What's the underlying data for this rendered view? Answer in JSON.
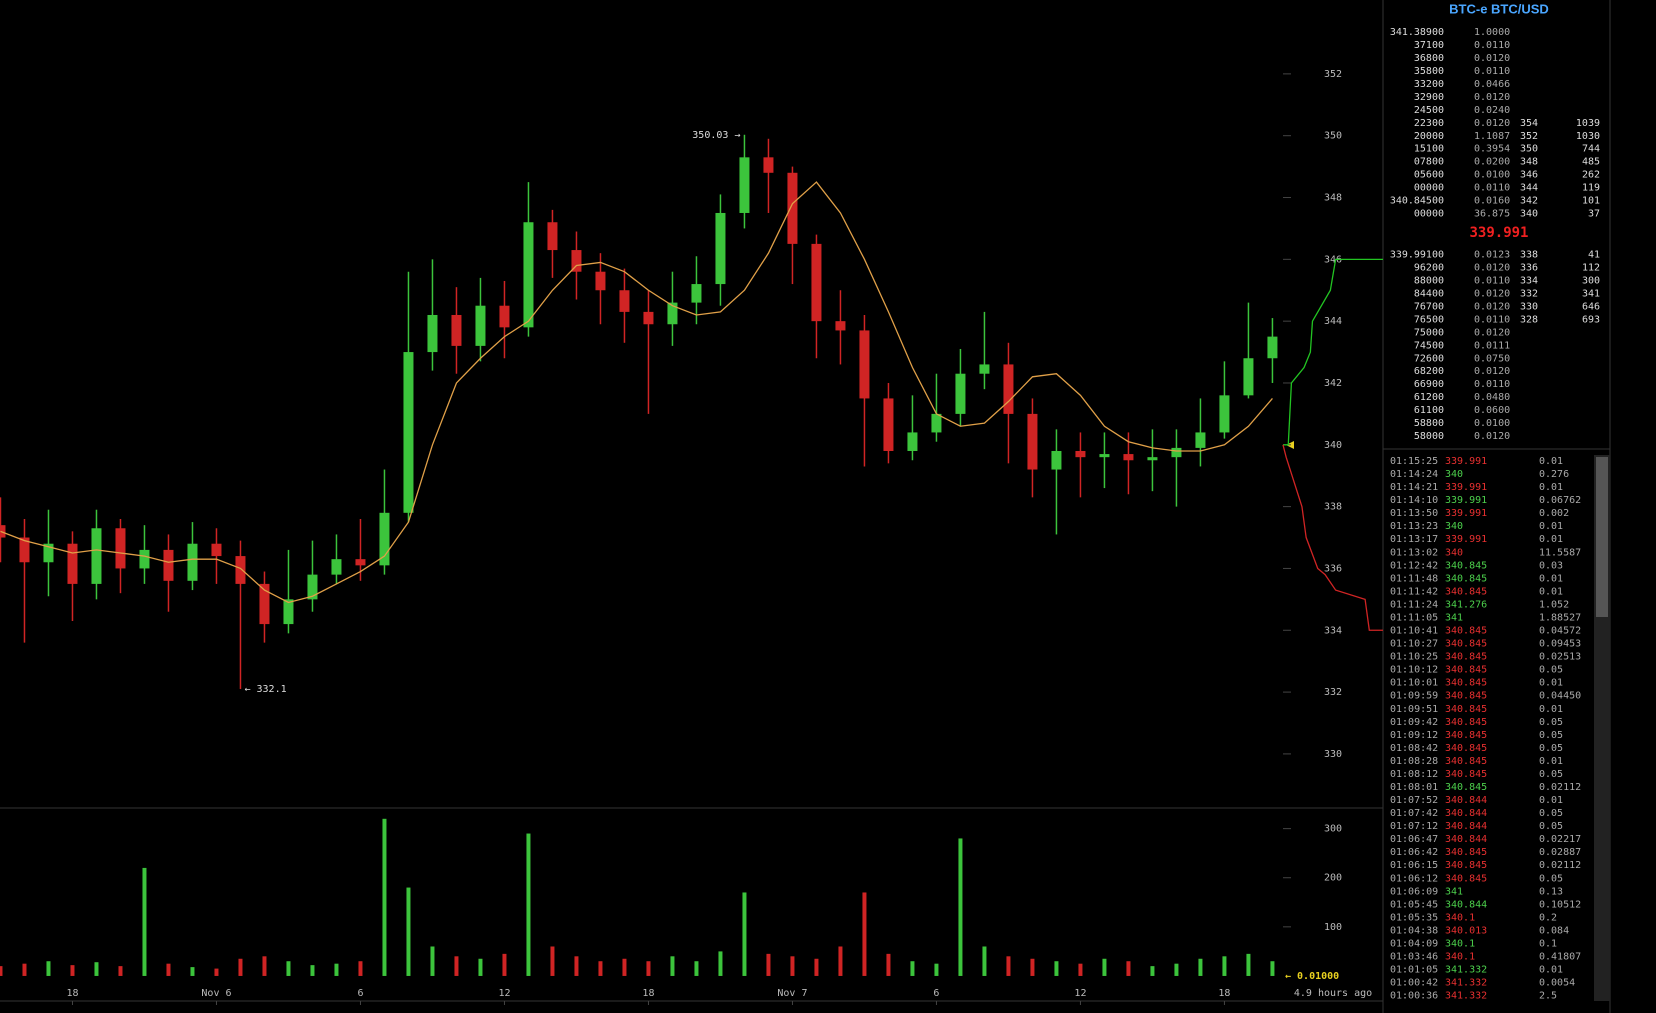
{
  "chart_data": [
    {
      "type": "candlestick",
      "x": [
        -9,
        -8,
        -7,
        -6,
        -5,
        -4,
        -3,
        -2,
        -1,
        0,
        1,
        2,
        3,
        4,
        5,
        6,
        7,
        8,
        9,
        10,
        11,
        12,
        13,
        14,
        15,
        16,
        17,
        18,
        19,
        20,
        21,
        22,
        23,
        24,
        25,
        26,
        27,
        28,
        29,
        30,
        31,
        32,
        33,
        34,
        35,
        36,
        37,
        38,
        39,
        40,
        41,
        42,
        43,
        44
      ],
      "open": [
        337.4,
        337.0,
        336.2,
        336.8,
        335.5,
        337.3,
        336.0,
        336.6,
        335.6,
        336.8,
        336.4,
        335.5,
        334.2,
        335.0,
        335.8,
        336.3,
        336.1,
        337.8,
        343.0,
        344.2,
        343.2,
        344.5,
        343.8,
        347.2,
        346.3,
        345.6,
        345.0,
        344.3,
        343.9,
        344.6,
        345.2,
        347.5,
        349.3,
        348.8,
        346.5,
        344.0,
        343.7,
        341.5,
        339.8,
        340.4,
        341.0,
        342.3,
        342.6,
        341.0,
        339.2,
        339.8,
        339.6,
        339.7,
        339.5,
        339.6,
        339.9,
        340.4,
        341.6,
        342.8
      ],
      "high": [
        338.3,
        337.6,
        337.9,
        337.2,
        337.9,
        337.6,
        337.4,
        337.1,
        337.5,
        337.3,
        336.9,
        335.9,
        336.6,
        336.9,
        337.1,
        337.6,
        339.2,
        345.6,
        346.0,
        345.1,
        345.4,
        345.3,
        348.5,
        347.6,
        346.9,
        346.2,
        345.7,
        345.0,
        345.6,
        346.1,
        348.1,
        350.03,
        349.9,
        349.0,
        346.8,
        345.0,
        344.2,
        342.0,
        341.6,
        342.3,
        343.1,
        344.3,
        343.3,
        341.5,
        340.5,
        340.4,
        340.4,
        340.4,
        340.5,
        340.5,
        341.5,
        342.7,
        344.6,
        344.1
      ],
      "low": [
        336.2,
        333.6,
        335.1,
        334.3,
        335.0,
        335.2,
        335.5,
        334.6,
        335.3,
        335.5,
        332.1,
        333.6,
        333.9,
        334.6,
        335.5,
        335.6,
        335.8,
        337.5,
        342.4,
        342.3,
        342.7,
        342.8,
        343.5,
        345.4,
        344.7,
        343.9,
        343.3,
        341.0,
        343.2,
        343.9,
        344.5,
        347.0,
        347.5,
        345.2,
        342.8,
        342.6,
        339.3,
        339.4,
        339.5,
        340.1,
        340.6,
        341.8,
        339.4,
        338.3,
        337.1,
        338.3,
        338.6,
        338.4,
        338.5,
        338.0,
        339.3,
        340.2,
        341.5,
        342.0
      ],
      "close": [
        337.0,
        336.2,
        336.8,
        335.5,
        337.3,
        336.0,
        336.6,
        335.6,
        336.8,
        336.4,
        335.5,
        334.2,
        335.0,
        335.8,
        336.3,
        336.1,
        337.8,
        343.0,
        344.2,
        343.2,
        344.5,
        343.8,
        347.2,
        346.3,
        345.6,
        345.0,
        344.3,
        343.9,
        344.6,
        345.2,
        347.5,
        349.3,
        348.8,
        346.5,
        344.0,
        343.7,
        341.5,
        339.8,
        340.4,
        341.0,
        342.3,
        342.6,
        341.0,
        339.2,
        339.8,
        339.6,
        339.7,
        339.5,
        339.6,
        339.9,
        340.4,
        341.6,
        342.8,
        343.5
      ],
      "up_color": "#3cc43c",
      "down_color": "#d02424",
      "series": [
        {
          "color": "#e0a048",
          "values": [
            337.2,
            336.9,
            336.7,
            336.5,
            336.6,
            336.5,
            336.4,
            336.2,
            336.3,
            336.3,
            336.0,
            335.3,
            334.9,
            335.1,
            335.5,
            335.9,
            336.4,
            337.5,
            340.0,
            342.0,
            342.8,
            343.5,
            344.0,
            345.0,
            345.8,
            345.9,
            345.6,
            345.0,
            344.5,
            344.2,
            344.3,
            345.0,
            346.2,
            347.8,
            348.5,
            347.5,
            346.0,
            344.3,
            342.5,
            341.0,
            340.6,
            340.7,
            341.4,
            342.2,
            342.3,
            341.6,
            340.6,
            340.1,
            339.9,
            339.8,
            339.8,
            340.0,
            340.6,
            341.5
          ]
        }
      ],
      "xlim": [
        -9.02,
        44.44
      ],
      "xticks": [
        {
          "value": -6,
          "label": "18"
        },
        {
          "value": 0,
          "label": "Nov 6"
        },
        6,
        12,
        18,
        {
          "value": 24,
          "label": "Nov 7"
        },
        {
          "value": 30,
          "label": "6"
        },
        {
          "value": 36,
          "label": "12"
        },
        {
          "value": 42,
          "label": "18"
        }
      ],
      "ylim": [
        328.25,
        354.39
      ],
      "yticks": [
        330,
        332,
        334,
        336,
        338,
        340,
        342,
        344,
        346,
        348,
        350,
        352
      ],
      "max_label": "350.03 →",
      "min_label": "← 332.1",
      "footnote": "4.9 hours ago"
    },
    {
      "type": "volume",
      "values": [
        20,
        25,
        30,
        22,
        28,
        20,
        220,
        25,
        18,
        15,
        35,
        40,
        30,
        22,
        25,
        30,
        320,
        180,
        60,
        40,
        35,
        45,
        290,
        60,
        40,
        30,
        35,
        30,
        40,
        30,
        50,
        170,
        45,
        40,
        35,
        60,
        170,
        45,
        30,
        25,
        280,
        60,
        40,
        35,
        30,
        25,
        35,
        30,
        20,
        25,
        35,
        40,
        45,
        30
      ],
      "ylim": [
        -51,
        342
      ],
      "yticks": [
        100,
        200,
        300
      ],
      "annotation": "← 0.01000"
    },
    {
      "type": "depth",
      "xlim": [
        0,
        95
      ],
      "series": [
        {
          "color": "#22c422",
          "x": [
            0,
            5,
            8,
            20,
            26,
            28,
            45,
            50,
            95
          ],
          "values": [
            340,
            340,
            342,
            342.5,
            343,
            344,
            345,
            346,
            346
          ]
        },
        {
          "color": "#d02424",
          "x": [
            0,
            3,
            18,
            22,
            33,
            40,
            50,
            78,
            82,
            95
          ],
          "values": [
            340,
            339.6,
            338,
            337,
            336,
            335.8,
            335.3,
            335,
            334,
            334
          ]
        }
      ]
    }
  ],
  "order_book": {
    "title": "BTC-e BTC/USD",
    "asks": [
      [
        "341.38900",
        "1.0000"
      ],
      [
        "37100",
        "0.0110"
      ],
      [
        "36800",
        "0.0120"
      ],
      [
        "35800",
        "0.0110"
      ],
      [
        "33200",
        "0.0466"
      ],
      [
        "32900",
        "0.0120"
      ],
      [
        "24500",
        "0.0240"
      ],
      [
        "22300",
        "0.0120",
        "354",
        "1039"
      ],
      [
        "20000",
        "1.1087",
        "352",
        "1030"
      ],
      [
        "15100",
        "0.3954",
        "350",
        "744"
      ],
      [
        "07800",
        "0.0200",
        "348",
        "485"
      ],
      [
        "05600",
        "0.0100",
        "346",
        "262"
      ],
      [
        "00000",
        "0.0110",
        "344",
        "119"
      ],
      [
        "340.84500",
        "0.0160",
        "342",
        "101"
      ],
      [
        "00000",
        "36.875",
        "340",
        "37"
      ]
    ],
    "last_price": "339.991",
    "bids": [
      [
        "339.99100",
        "0.0123",
        "338",
        "41"
      ],
      [
        "96200",
        "0.0120",
        "336",
        "112"
      ],
      [
        "88000",
        "0.0110",
        "334",
        "300"
      ],
      [
        "84400",
        "0.0120",
        "332",
        "341"
      ],
      [
        "76700",
        "0.0120",
        "330",
        "646"
      ],
      [
        "76500",
        "0.0110",
        "328",
        "693"
      ],
      [
        "75000",
        "0.0120"
      ],
      [
        "74500",
        "0.0111"
      ],
      [
        "72600",
        "0.0750"
      ],
      [
        "68200",
        "0.0120"
      ],
      [
        "66900",
        "0.0110"
      ],
      [
        "61200",
        "0.0480"
      ],
      [
        "61100",
        "0.0600"
      ],
      [
        "58800",
        "0.0100"
      ],
      [
        "58000",
        "0.0120"
      ]
    ]
  },
  "trades": [
    {
      "time": "01:15:25",
      "price": "339.991",
      "amount": "0.01",
      "color": "#e83030"
    },
    {
      "time": "01:14:24",
      "price": "340",
      "amount": "0.276",
      "color": "#4cd04c"
    },
    {
      "time": "01:14:21",
      "price": "339.991",
      "amount": "0.01",
      "color": "#e83030"
    },
    {
      "time": "01:14:10",
      "price": "339.991",
      "amount": "0.06762",
      "color": "#4cd04c"
    },
    {
      "time": "01:13:50",
      "price": "339.991",
      "amount": "0.002",
      "color": "#e83030"
    },
    {
      "time": "01:13:23",
      "price": "340",
      "amount": "0.01",
      "color": "#4cd04c"
    },
    {
      "time": "01:13:17",
      "price": "339.991",
      "amount": "0.01",
      "color": "#e83030"
    },
    {
      "time": "01:13:02",
      "price": "340",
      "amount": "11.5587",
      "color": "#e83030"
    },
    {
      "time": "01:12:42",
      "price": "340.845",
      "amount": "0.03",
      "color": "#4cd04c"
    },
    {
      "time": "01:11:48",
      "price": "340.845",
      "amount": "0.01",
      "color": "#4cd04c"
    },
    {
      "time": "01:11:42",
      "price": "340.845",
      "amount": "0.01",
      "color": "#e83030"
    },
    {
      "time": "01:11:24",
      "price": "341.276",
      "amount": "1.052",
      "color": "#4cd04c"
    },
    {
      "time": "01:11:05",
      "price": "341",
      "amount": "1.88527",
      "color": "#4cd04c"
    },
    {
      "time": "01:10:41",
      "price": "340.845",
      "amount": "0.04572",
      "color": "#e83030"
    },
    {
      "time": "01:10:27",
      "price": "340.845",
      "amount": "0.09453",
      "color": "#e83030"
    },
    {
      "time": "01:10:25",
      "price": "340.845",
      "amount": "0.02513",
      "color": "#e83030"
    },
    {
      "time": "01:10:12",
      "price": "340.845",
      "amount": "0.05",
      "color": "#e83030"
    },
    {
      "time": "01:10:01",
      "price": "340.845",
      "amount": "0.01",
      "color": "#e83030"
    },
    {
      "time": "01:09:59",
      "price": "340.845",
      "amount": "0.04450",
      "color": "#e83030"
    },
    {
      "time": "01:09:51",
      "price": "340.845",
      "amount": "0.01",
      "color": "#e83030"
    },
    {
      "time": "01:09:42",
      "price": "340.845",
      "amount": "0.05",
      "color": "#e83030"
    },
    {
      "time": "01:09:12",
      "price": "340.845",
      "amount": "0.05",
      "color": "#e83030"
    },
    {
      "time": "01:08:42",
      "price": "340.845",
      "amount": "0.05",
      "color": "#e83030"
    },
    {
      "time": "01:08:28",
      "price": "340.845",
      "amount": "0.01",
      "color": "#e83030"
    },
    {
      "time": "01:08:12",
      "price": "340.845",
      "amount": "0.05",
      "color": "#e83030"
    },
    {
      "time": "01:08:01",
      "price": "340.845",
      "amount": "0.02112",
      "color": "#4cd04c"
    },
    {
      "time": "01:07:52",
      "price": "340.844",
      "amount": "0.01",
      "color": "#e83030"
    },
    {
      "time": "01:07:42",
      "price": "340.844",
      "amount": "0.05",
      "color": "#e83030"
    },
    {
      "time": "01:07:12",
      "price": "340.844",
      "amount": "0.05",
      "color": "#e83030"
    },
    {
      "time": "01:06:47",
      "price": "340.844",
      "amount": "0.02217",
      "color": "#e83030"
    },
    {
      "time": "01:06:42",
      "price": "340.845",
      "amount": "0.02887",
      "color": "#e83030"
    },
    {
      "time": "01:06:15",
      "price": "340.845",
      "amount": "0.02112",
      "color": "#e83030"
    },
    {
      "time": "01:06:12",
      "price": "340.845",
      "amount": "0.05",
      "color": "#e83030"
    },
    {
      "time": "01:06:09",
      "price": "341",
      "amount": "0.13",
      "color": "#4cd04c"
    },
    {
      "time": "01:05:45",
      "price": "340.844",
      "amount": "0.10512",
      "color": "#4cd04c"
    },
    {
      "time": "01:05:35",
      "price": "340.1",
      "amount": "0.2",
      "color": "#e83030"
    },
    {
      "time": "01:04:38",
      "price": "340.013",
      "amount": "0.084",
      "color": "#e83030"
    },
    {
      "time": "01:04:09",
      "price": "340.1",
      "amount": "0.1",
      "color": "#4cd04c"
    },
    {
      "time": "01:03:46",
      "price": "340.1",
      "amount": "0.41807",
      "color": "#e83030"
    },
    {
      "time": "01:01:05",
      "price": "341.332",
      "amount": "0.01",
      "color": "#4cd04c"
    },
    {
      "time": "01:00:42",
      "price": "341.332",
      "amount": "0.0054",
      "color": "#e83030"
    },
    {
      "time": "01:00:36",
      "price": "341.332",
      "amount": "2.5",
      "color": "#e83030"
    }
  ]
}
